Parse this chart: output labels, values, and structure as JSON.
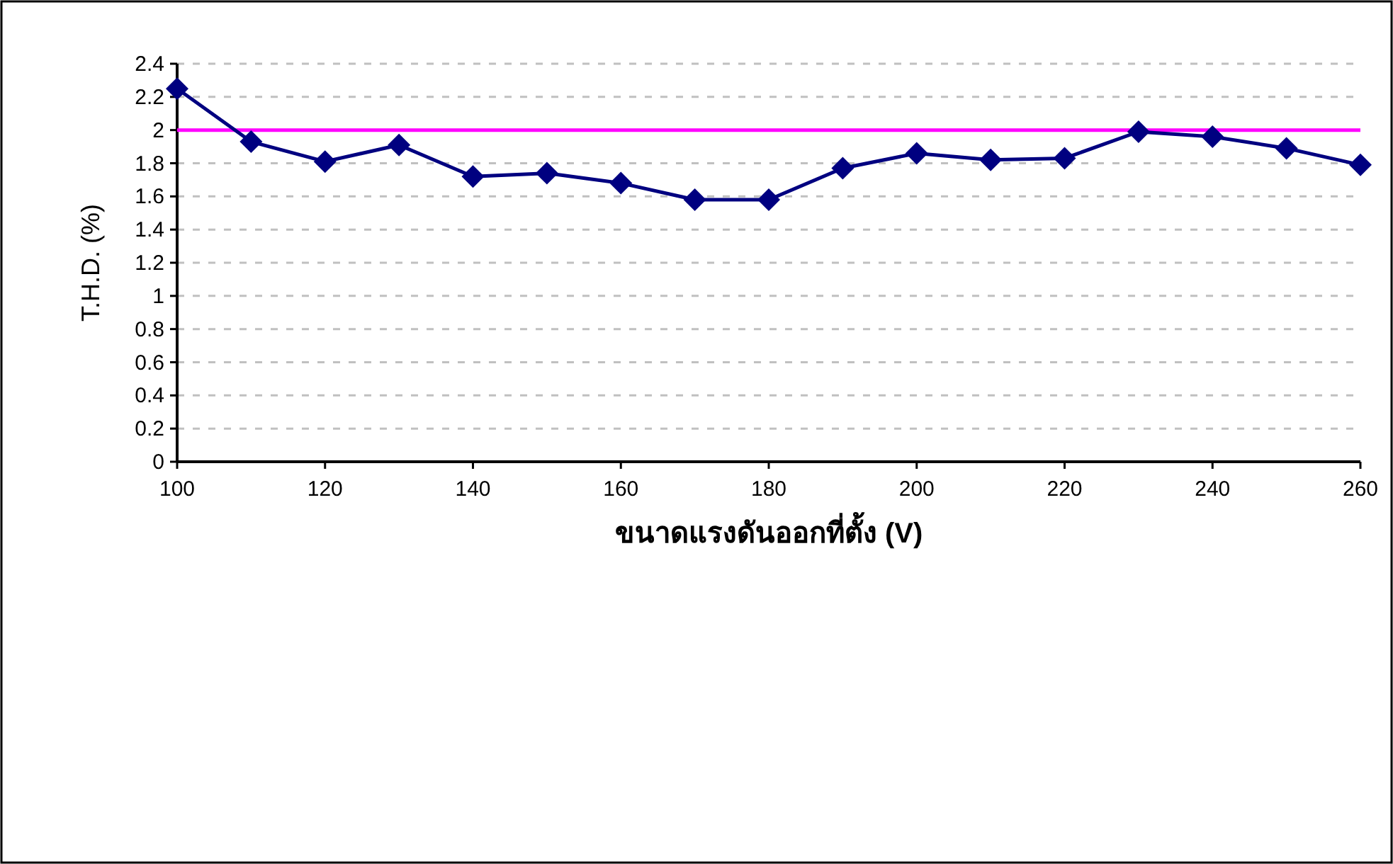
{
  "chart_data": {
    "type": "line",
    "xlabel": "ขนาดแรงดันออกที่ตั้ง (V)",
    "ylabel": "T.H.D. (%)",
    "x": [
      100,
      110,
      120,
      130,
      140,
      150,
      160,
      170,
      180,
      190,
      200,
      210,
      220,
      230,
      240,
      250,
      260
    ],
    "series": [
      {
        "color": "#000080",
        "values": [
          2.25,
          1.93,
          1.81,
          1.91,
          1.72,
          1.74,
          1.68,
          1.58,
          1.58,
          1.77,
          1.86,
          1.82,
          1.83,
          1.99,
          1.96,
          1.89,
          1.79
        ]
      }
    ],
    "xlim": [
      100,
      260
    ],
    "xticks": [
      100,
      120,
      140,
      160,
      180,
      200,
      220,
      240,
      260
    ],
    "ylim": [
      0,
      2.4
    ],
    "yticks": [
      0,
      0.2,
      0.4,
      0.6,
      0.8,
      1,
      1.2,
      1.4,
      1.6,
      1.8,
      2,
      2.2,
      2.4
    ],
    "ref_lines": [
      {
        "axis": "y",
        "value": 2,
        "color": "#ff00ff"
      }
    ],
    "grid": "y",
    "marker": "diamond",
    "line_style": "solid"
  }
}
